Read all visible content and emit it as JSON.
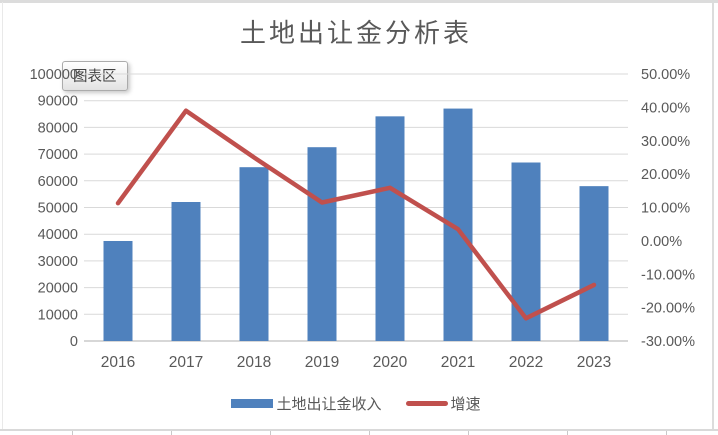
{
  "overlay": {
    "tooltip_label": "图表区"
  },
  "chart_data": {
    "type": "combo-bar-line",
    "title": "土地出让金分析表",
    "categories": [
      "2016",
      "2017",
      "2018",
      "2019",
      "2020",
      "2021",
      "2022",
      "2023"
    ],
    "series": [
      {
        "name": "土地出让金收入",
        "type": "bar",
        "axis": "left",
        "color": "#4F81BD",
        "values": [
          37457,
          52059,
          65096,
          72584,
          84142,
          87051,
          66854,
          57996
        ]
      },
      {
        "name": "增速",
        "type": "line",
        "axis": "right",
        "color": "#C0504D",
        "values_pct": [
          11.3,
          39.0,
          25.0,
          11.5,
          15.9,
          3.5,
          -23.2,
          -13.2
        ]
      }
    ],
    "left_axis": {
      "min": 0,
      "max": 100000,
      "step": 10000,
      "tick_labels": [
        "100000",
        "90000",
        "80000",
        "70000",
        "60000",
        "50000",
        "40000",
        "30000",
        "20000",
        "10000",
        "0"
      ]
    },
    "right_axis": {
      "min": -30,
      "max": 50,
      "step": 10,
      "tick_labels": [
        "50.00%",
        "40.00%",
        "30.00%",
        "20.00%",
        "10.00%",
        "0.00%",
        "-10.00%",
        "-20.00%",
        "-30.00%"
      ]
    },
    "grid": true,
    "legend_position": "bottom",
    "grid_color": "#D9D9D9",
    "axis_line_color": "#BFBFBF",
    "axis_text_color": "#595959"
  }
}
